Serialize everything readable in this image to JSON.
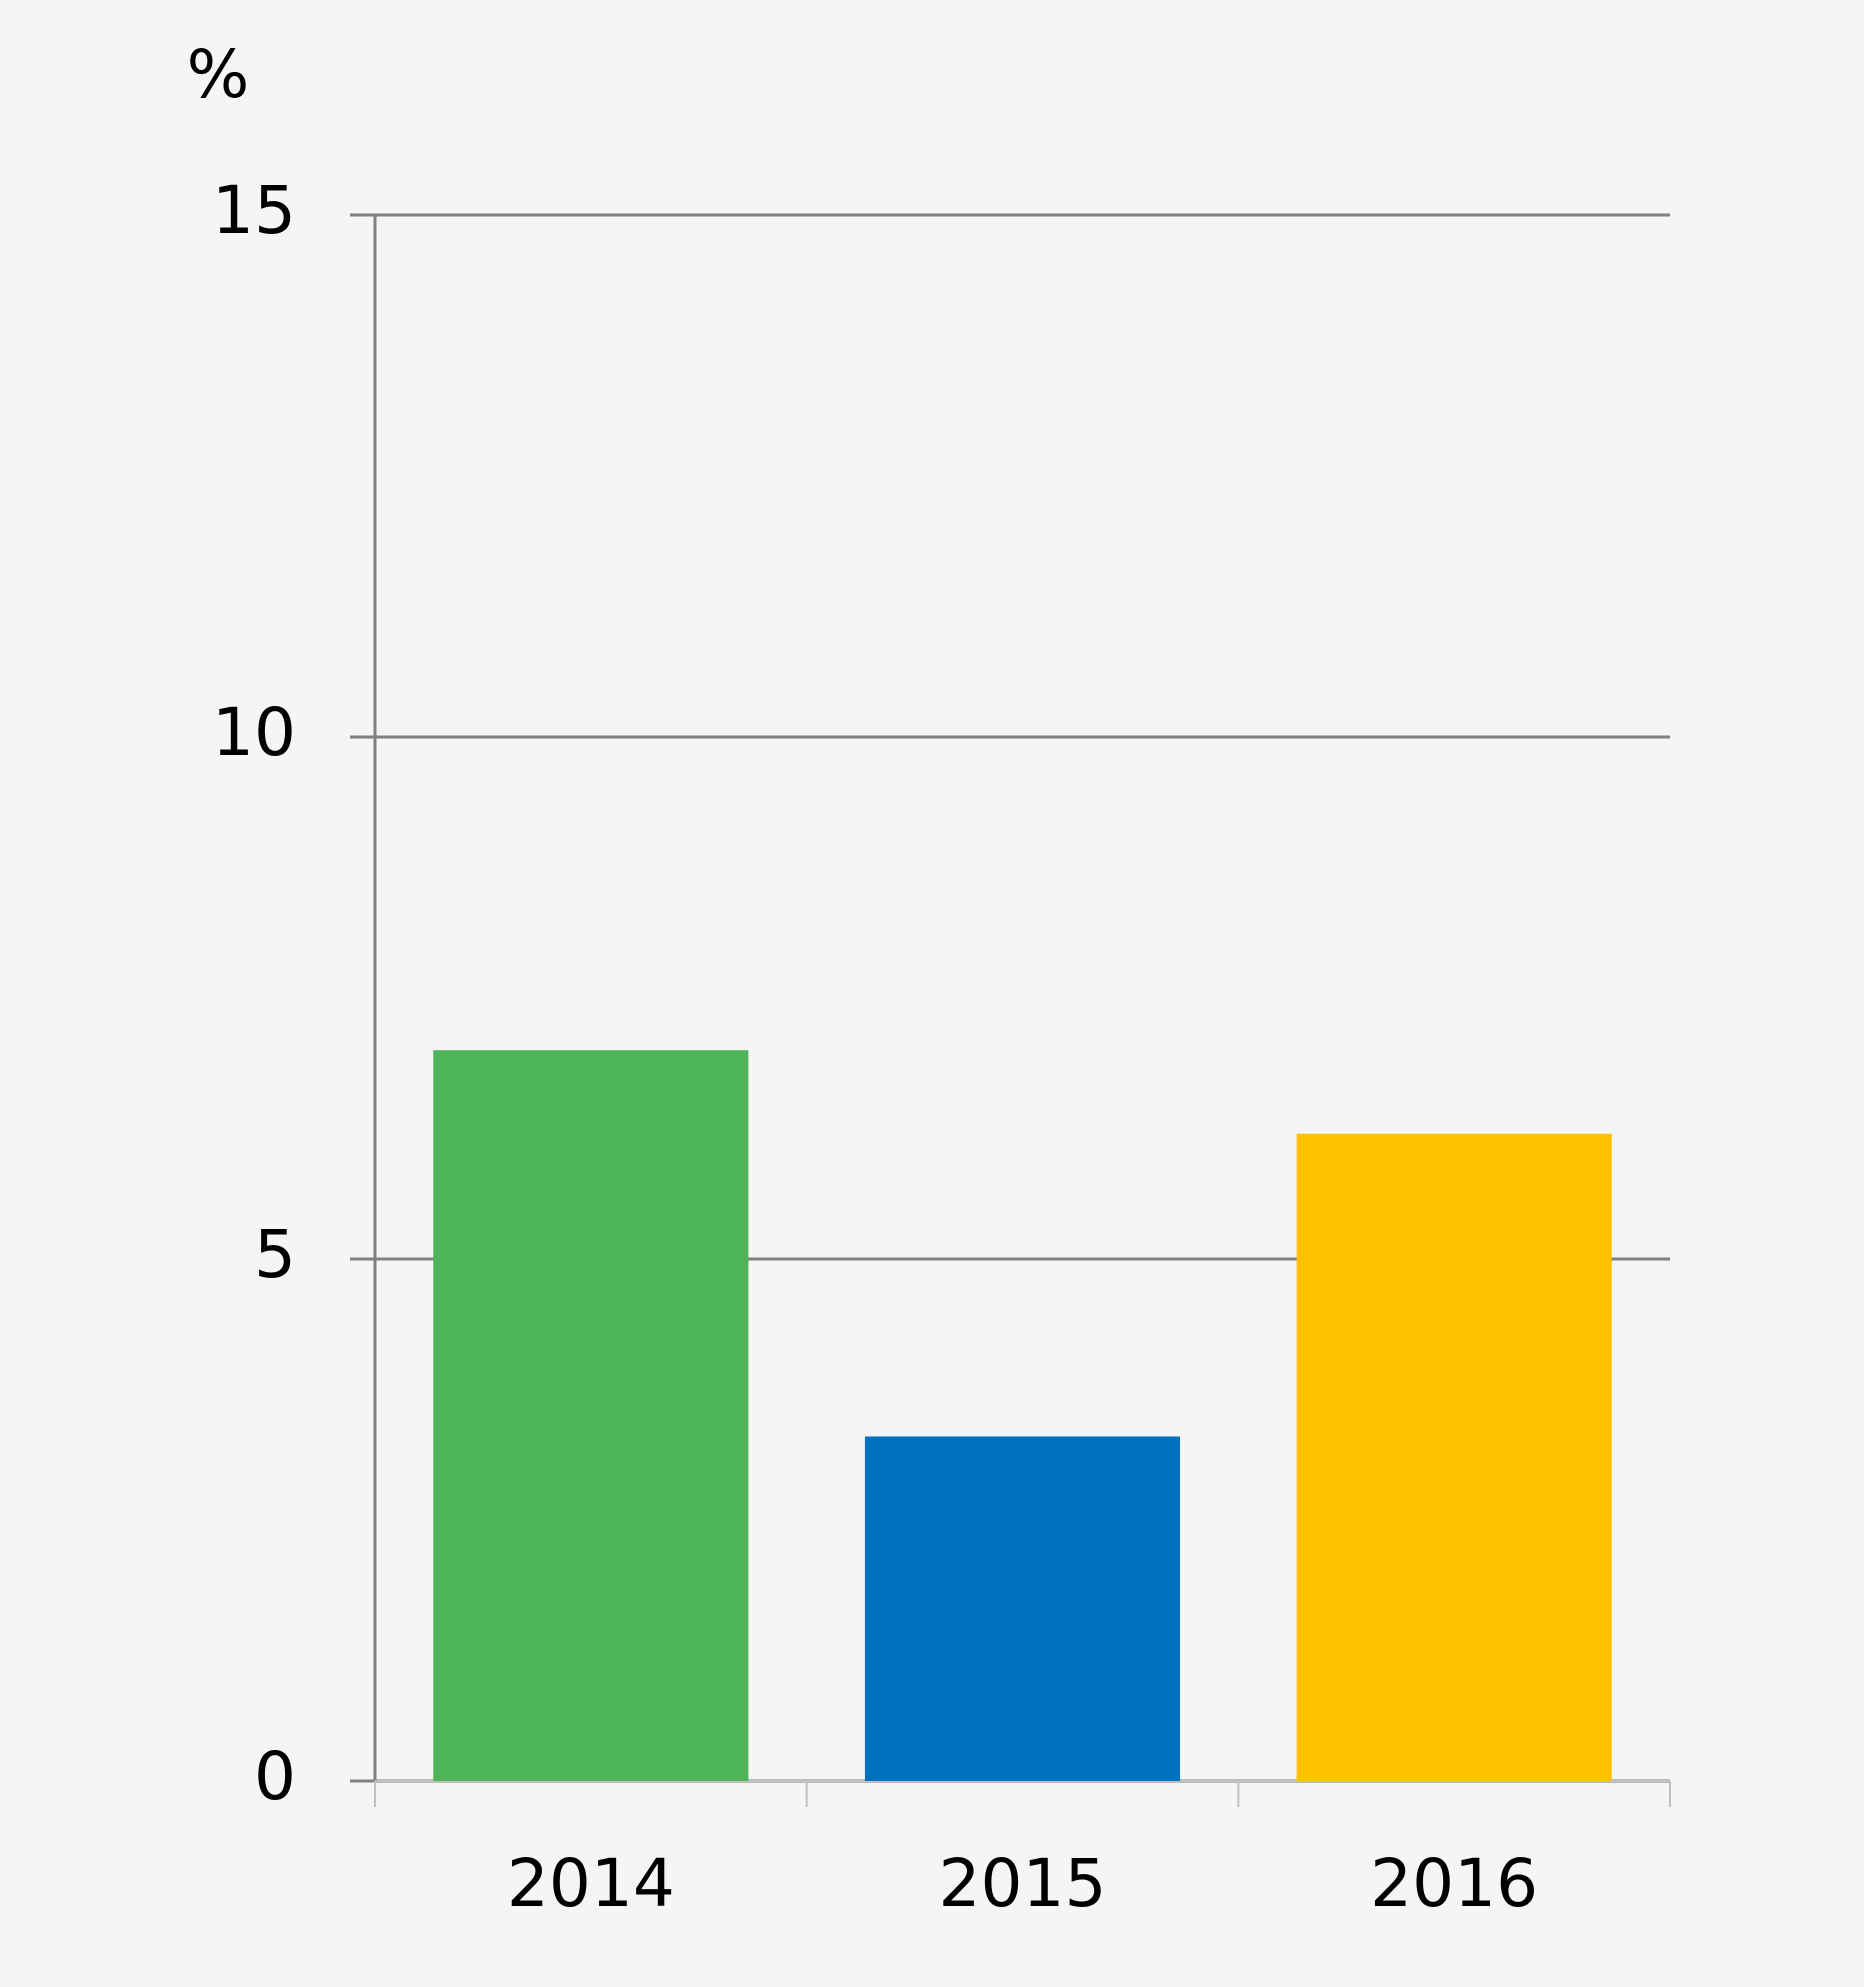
{
  "chart_data": {
    "type": "bar",
    "y_label": "%",
    "categories": [
      "2014",
      "2015",
      "2016"
    ],
    "values": [
      7.0,
      3.3,
      6.2
    ],
    "colors": [
      "#4db45a",
      "#0070c0",
      "#ffc000"
    ],
    "ylim": [
      0,
      15
    ],
    "yticks": [
      0,
      5,
      10,
      15
    ],
    "grid": true
  }
}
